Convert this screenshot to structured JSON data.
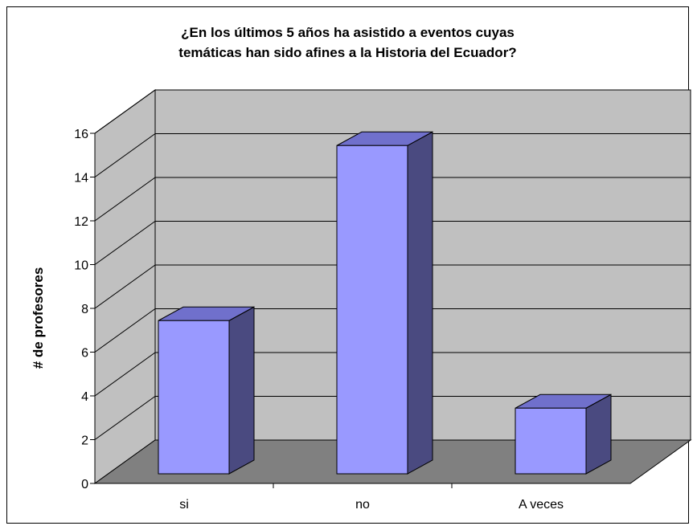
{
  "chart_data": {
    "type": "bar",
    "title_lines": [
      "¿En los últimos 5 años ha asistido a eventos cuyas",
      "temáticas han sido afines a la Historia del Ecuador?"
    ],
    "xlabel": "",
    "ylabel": "# de profesores",
    "categories": [
      "si",
      "no",
      "A veces"
    ],
    "values": [
      7,
      15,
      3
    ],
    "ylim": [
      0,
      16
    ],
    "yticks": [
      0,
      2,
      4,
      6,
      8,
      10,
      12,
      14,
      16
    ],
    "grid": true,
    "three_d": true,
    "legend": "none",
    "colors": {
      "bar_front": "#9999ff",
      "bar_top": "#7070cc",
      "bar_side": "#4a4a80",
      "wall": "#c0c0c0",
      "floor": "#808080",
      "gridline": "#000000"
    }
  }
}
